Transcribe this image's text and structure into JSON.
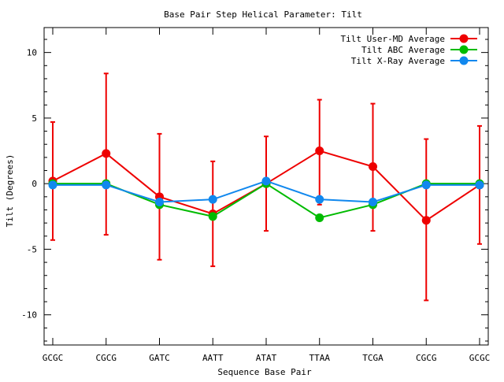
{
  "chart_data": {
    "type": "line",
    "title": "Base Pair Step Helical Parameter: Tilt",
    "xlabel": "Sequence Base Pair",
    "ylabel": "Tilt (Degrees)",
    "categories": [
      "GCGC",
      "CGCG",
      "GATC",
      "AATT",
      "ATAT",
      "TTAA",
      "TCGA",
      "CGCG",
      "GCGC"
    ],
    "ylim": [
      -12.3,
      11.9
    ],
    "yticks": [
      -10,
      -5,
      0,
      5,
      10
    ],
    "legend_position": "top-right",
    "grid": false,
    "series": [
      {
        "name": "Tilt User-MD Average",
        "color": "#ee0000",
        "values": [
          0.2,
          2.3,
          -1.0,
          -2.3,
          0.0,
          2.5,
          1.3,
          -2.8,
          -0.1
        ],
        "error_low": [
          -4.3,
          -3.9,
          -5.8,
          -6.3,
          -3.6,
          -1.6,
          -3.6,
          -8.9,
          -4.6
        ],
        "error_high": [
          4.7,
          8.4,
          3.8,
          1.7,
          3.6,
          6.4,
          6.1,
          3.4,
          4.4
        ]
      },
      {
        "name": "Tilt ABC Average",
        "color": "#00bb00",
        "values": [
          0.0,
          0.0,
          -1.6,
          -2.5,
          0.0,
          -2.6,
          -1.6,
          0.0,
          0.0
        ]
      },
      {
        "name": "Tilt X-Ray Average",
        "color": "#1188ee",
        "values": [
          -0.1,
          -0.1,
          -1.4,
          -1.2,
          0.2,
          -1.2,
          -1.4,
          -0.1,
          -0.1
        ]
      }
    ]
  }
}
